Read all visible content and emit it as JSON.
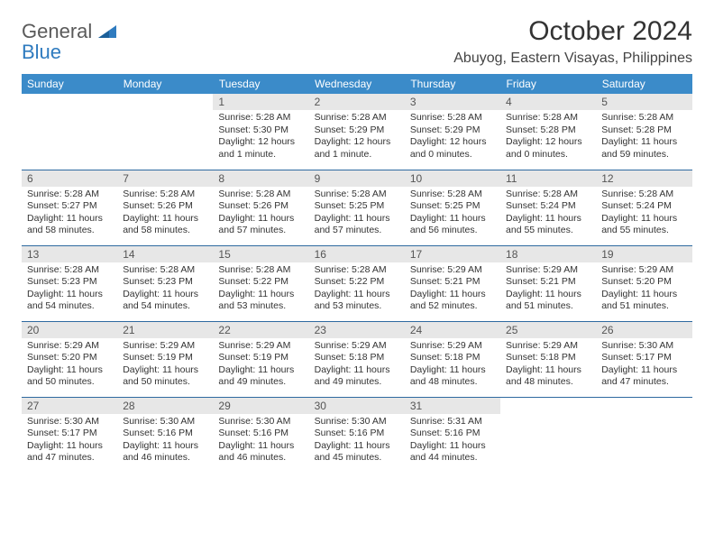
{
  "brand": {
    "word1": "General",
    "word2": "Blue"
  },
  "title": "October 2024",
  "location": "Abuyog, Eastern Visayas, Philippines",
  "colors": {
    "header_bg": "#3b8bc9",
    "header_text": "#ffffff",
    "daynum_bg": "#e7e7e7",
    "row_border": "#2f6aa0",
    "logo_gray": "#5a5a5a",
    "logo_blue": "#2f7bbf"
  },
  "day_headers": [
    "Sunday",
    "Monday",
    "Tuesday",
    "Wednesday",
    "Thursday",
    "Friday",
    "Saturday"
  ],
  "weeks": [
    [
      null,
      null,
      {
        "n": "1",
        "sr": "5:28 AM",
        "ss": "5:30 PM",
        "dl": "12 hours and 1 minute."
      },
      {
        "n": "2",
        "sr": "5:28 AM",
        "ss": "5:29 PM",
        "dl": "12 hours and 1 minute."
      },
      {
        "n": "3",
        "sr": "5:28 AM",
        "ss": "5:29 PM",
        "dl": "12 hours and 0 minutes."
      },
      {
        "n": "4",
        "sr": "5:28 AM",
        "ss": "5:28 PM",
        "dl": "12 hours and 0 minutes."
      },
      {
        "n": "5",
        "sr": "5:28 AM",
        "ss": "5:28 PM",
        "dl": "11 hours and 59 minutes."
      }
    ],
    [
      {
        "n": "6",
        "sr": "5:28 AM",
        "ss": "5:27 PM",
        "dl": "11 hours and 58 minutes."
      },
      {
        "n": "7",
        "sr": "5:28 AM",
        "ss": "5:26 PM",
        "dl": "11 hours and 58 minutes."
      },
      {
        "n": "8",
        "sr": "5:28 AM",
        "ss": "5:26 PM",
        "dl": "11 hours and 57 minutes."
      },
      {
        "n": "9",
        "sr": "5:28 AM",
        "ss": "5:25 PM",
        "dl": "11 hours and 57 minutes."
      },
      {
        "n": "10",
        "sr": "5:28 AM",
        "ss": "5:25 PM",
        "dl": "11 hours and 56 minutes."
      },
      {
        "n": "11",
        "sr": "5:28 AM",
        "ss": "5:24 PM",
        "dl": "11 hours and 55 minutes."
      },
      {
        "n": "12",
        "sr": "5:28 AM",
        "ss": "5:24 PM",
        "dl": "11 hours and 55 minutes."
      }
    ],
    [
      {
        "n": "13",
        "sr": "5:28 AM",
        "ss": "5:23 PM",
        "dl": "11 hours and 54 minutes."
      },
      {
        "n": "14",
        "sr": "5:28 AM",
        "ss": "5:23 PM",
        "dl": "11 hours and 54 minutes."
      },
      {
        "n": "15",
        "sr": "5:28 AM",
        "ss": "5:22 PM",
        "dl": "11 hours and 53 minutes."
      },
      {
        "n": "16",
        "sr": "5:28 AM",
        "ss": "5:22 PM",
        "dl": "11 hours and 53 minutes."
      },
      {
        "n": "17",
        "sr": "5:29 AM",
        "ss": "5:21 PM",
        "dl": "11 hours and 52 minutes."
      },
      {
        "n": "18",
        "sr": "5:29 AM",
        "ss": "5:21 PM",
        "dl": "11 hours and 51 minutes."
      },
      {
        "n": "19",
        "sr": "5:29 AM",
        "ss": "5:20 PM",
        "dl": "11 hours and 51 minutes."
      }
    ],
    [
      {
        "n": "20",
        "sr": "5:29 AM",
        "ss": "5:20 PM",
        "dl": "11 hours and 50 minutes."
      },
      {
        "n": "21",
        "sr": "5:29 AM",
        "ss": "5:19 PM",
        "dl": "11 hours and 50 minutes."
      },
      {
        "n": "22",
        "sr": "5:29 AM",
        "ss": "5:19 PM",
        "dl": "11 hours and 49 minutes."
      },
      {
        "n": "23",
        "sr": "5:29 AM",
        "ss": "5:18 PM",
        "dl": "11 hours and 49 minutes."
      },
      {
        "n": "24",
        "sr": "5:29 AM",
        "ss": "5:18 PM",
        "dl": "11 hours and 48 minutes."
      },
      {
        "n": "25",
        "sr": "5:29 AM",
        "ss": "5:18 PM",
        "dl": "11 hours and 48 minutes."
      },
      {
        "n": "26",
        "sr": "5:30 AM",
        "ss": "5:17 PM",
        "dl": "11 hours and 47 minutes."
      }
    ],
    [
      {
        "n": "27",
        "sr": "5:30 AM",
        "ss": "5:17 PM",
        "dl": "11 hours and 47 minutes."
      },
      {
        "n": "28",
        "sr": "5:30 AM",
        "ss": "5:16 PM",
        "dl": "11 hours and 46 minutes."
      },
      {
        "n": "29",
        "sr": "5:30 AM",
        "ss": "5:16 PM",
        "dl": "11 hours and 46 minutes."
      },
      {
        "n": "30",
        "sr": "5:30 AM",
        "ss": "5:16 PM",
        "dl": "11 hours and 45 minutes."
      },
      {
        "n": "31",
        "sr": "5:31 AM",
        "ss": "5:16 PM",
        "dl": "11 hours and 44 minutes."
      },
      null,
      null
    ]
  ]
}
